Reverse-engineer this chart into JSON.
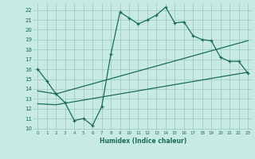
{
  "xlabel": "Humidex (Indice chaleur)",
  "xlim": [
    -0.5,
    23.5
  ],
  "ylim": [
    9.8,
    22.7
  ],
  "yticks": [
    10,
    11,
    12,
    13,
    14,
    15,
    16,
    17,
    18,
    19,
    20,
    21,
    22
  ],
  "xticks": [
    0,
    1,
    2,
    3,
    4,
    5,
    6,
    7,
    8,
    9,
    10,
    11,
    12,
    13,
    14,
    15,
    16,
    17,
    18,
    19,
    20,
    21,
    22,
    23
  ],
  "bg_color": "#c8eae4",
  "grid_color": "#a0ccc4",
  "line_color": "#1a6b5a",
  "line1_x": [
    0,
    1,
    2,
    3,
    4,
    5,
    6,
    7,
    8,
    9,
    10,
    11,
    12,
    13,
    14,
    15,
    16,
    17,
    18,
    19,
    20,
    21,
    22,
    23
  ],
  "line1_y": [
    16.0,
    14.8,
    13.5,
    12.6,
    10.8,
    11.0,
    10.3,
    12.2,
    17.5,
    21.8,
    21.2,
    20.6,
    21.0,
    21.5,
    22.3,
    20.7,
    20.8,
    19.4,
    19.0,
    18.9,
    17.2,
    16.8,
    16.8,
    15.6
  ],
  "line2_x": [
    0,
    2,
    23
  ],
  "line2_y": [
    13.8,
    13.5,
    18.9
  ],
  "line3_x": [
    0,
    2,
    23
  ],
  "line3_y": [
    12.5,
    12.4,
    15.7
  ]
}
